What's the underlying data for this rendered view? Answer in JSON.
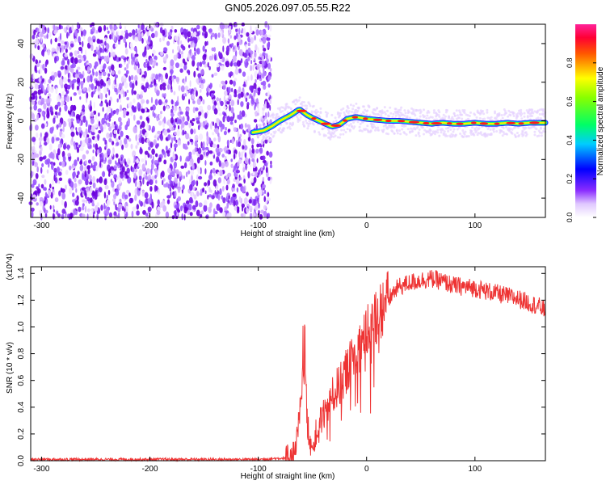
{
  "title": "GN05.2026.097.05.55.R22",
  "chart_data": [
    {
      "type": "heatmap",
      "xlabel": "Height of straight line (km)",
      "ylabel": "Frequency (Hz)",
      "xlim": [
        -310,
        165
      ],
      "ylim": [
        -50,
        50
      ],
      "xticks": [
        -300,
        -200,
        -100,
        0,
        100
      ],
      "yticks": [
        -40,
        -20,
        0,
        20,
        40
      ],
      "colorbar": {
        "label": "Normalized spectral amplitude",
        "range": [
          0,
          1
        ],
        "ticks": [
          "0.0",
          "0.2",
          "0.4",
          "0.6",
          "0.8"
        ],
        "colormap": [
          "#ffffff",
          "#6a00ff",
          "#0000ff",
          "#00ffff",
          "#00ff00",
          "#ffff00",
          "#ff0000",
          "#ff00aa"
        ]
      },
      "ridge": {
        "x": [
          -105,
          -95,
          -88,
          -80,
          -70,
          -62,
          -55,
          -48,
          -40,
          -32,
          -25,
          -18,
          -10,
          0,
          10,
          20,
          30,
          40,
          50,
          60,
          70,
          80,
          90,
          100,
          110,
          120,
          130,
          140,
          150,
          165
        ],
        "y": [
          -6,
          -5,
          -3,
          0,
          3,
          6,
          3,
          1,
          -1,
          -3,
          -2,
          1,
          2,
          1,
          0.5,
          0,
          0,
          -0.5,
          -1,
          -1.5,
          -1,
          -1.5,
          -1.5,
          -1,
          -1.5,
          -1.5,
          -1,
          -1.5,
          -1,
          -1
        ]
      }
    },
    {
      "type": "line",
      "xlabel": "Height of straight line (km)",
      "ylabel": "SNR (10 * v/v)",
      "yunit": "(x10^4)",
      "xlim": [
        -310,
        165
      ],
      "ylim": [
        0,
        1.45
      ],
      "xticks": [
        -300,
        -200,
        -100,
        0,
        100
      ],
      "yticks": [
        "0.0",
        "0.2",
        "0.4",
        "0.6",
        "0.8",
        "1.0",
        "1.2",
        "1.4"
      ],
      "color": "#ee3333",
      "x": [
        -310,
        -100,
        -75,
        -68,
        -65,
        -60,
        -57,
        -55,
        -52,
        -50,
        -45,
        -40,
        -30,
        -20,
        -10,
        0,
        10,
        20,
        25,
        30,
        40,
        50,
        60,
        70,
        80,
        90,
        100,
        110,
        120,
        130,
        140,
        150,
        160,
        165
      ],
      "y": [
        0.01,
        0.01,
        0.02,
        0.05,
        0.12,
        0.45,
        0.85,
        0.3,
        0.15,
        0.1,
        0.25,
        0.35,
        0.5,
        0.65,
        0.8,
        0.95,
        1.1,
        1.2,
        1.26,
        1.3,
        1.33,
        1.35,
        1.36,
        1.34,
        1.31,
        1.3,
        1.29,
        1.27,
        1.25,
        1.23,
        1.21,
        1.18,
        1.15,
        1.12
      ]
    }
  ]
}
